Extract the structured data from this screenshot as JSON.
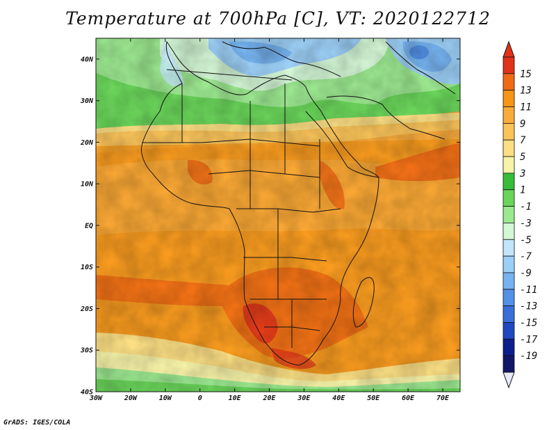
{
  "title": "Temperature at 700hPa [C], VT: 2020122712",
  "credit": "GrADS: IGES/COLA",
  "map": {
    "lon_range": [
      -30,
      75
    ],
    "lat_range": [
      -40,
      45
    ],
    "x_ticks": [
      "30W",
      "20W",
      "10W",
      "0",
      "10E",
      "20E",
      "30E",
      "40E",
      "50E",
      "60E",
      "70E"
    ],
    "x_tick_values": [
      -30,
      -20,
      -10,
      0,
      10,
      20,
      30,
      40,
      50,
      60,
      70
    ],
    "y_ticks": [
      "40N",
      "30N",
      "20N",
      "10N",
      "EQ",
      "10S",
      "20S",
      "30S",
      "40S"
    ],
    "y_tick_values": [
      40,
      30,
      20,
      10,
      0,
      -10,
      -20,
      -30,
      -40
    ]
  },
  "colorbar": {
    "labels": [
      "15",
      "13",
      "11",
      "9",
      "7",
      "5",
      "3",
      "1",
      "-1",
      "-3",
      "-5",
      "-7",
      "-9",
      "-11",
      "-13",
      "-15",
      "-17",
      "-19"
    ],
    "colors": [
      "#e0321a",
      "#f06a14",
      "#f79516",
      "#f9ab3c",
      "#fbc45a",
      "#fcdf84",
      "#f7f3a8",
      "#38bd3a",
      "#6ad55a",
      "#9ce890",
      "#d4f7d6",
      "#c2e5f9",
      "#9ccff6",
      "#76b3f0",
      "#5390e6",
      "#3a6fd9",
      "#2148c0",
      "#0e1e8c",
      "#121666"
    ],
    "top_color": "#e0321a",
    "bottom_color": "#e8e8ff"
  }
}
